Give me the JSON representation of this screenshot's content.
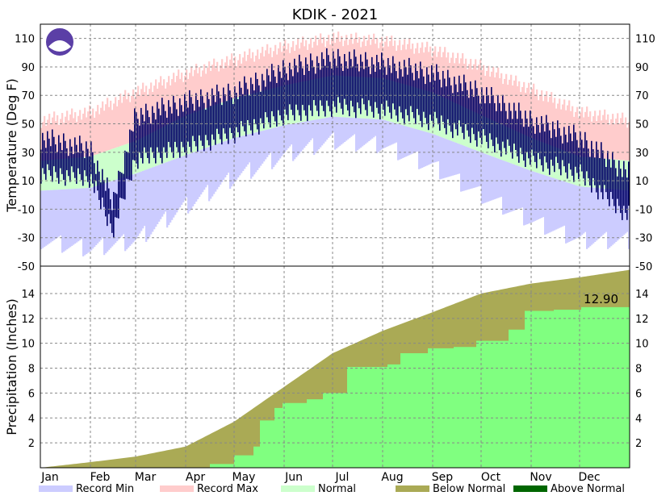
{
  "title": "KDIK - 2021",
  "chart_data": [
    {
      "type": "bar",
      "name": "temperature",
      "ylabel": "Temperature (Deg F)",
      "ylim": [
        -50,
        120
      ],
      "yticks": [
        110,
        90,
        70,
        50,
        30,
        10,
        -10,
        -30,
        -50
      ],
      "months": [
        "Jan",
        "Feb",
        "Mar",
        "Apr",
        "May",
        "Jun",
        "Jul",
        "Aug",
        "Sep",
        "Oct",
        "Nov",
        "Dec"
      ],
      "grid": true,
      "series": [
        {
          "name": "Record Min",
          "color": "#ccccff"
        },
        {
          "name": "Record Max",
          "color": "#ffcccc"
        },
        {
          "name": "Normal",
          "color": "#ccffcc"
        },
        {
          "name": "Observed",
          "color": "#000066"
        }
      ],
      "normal_high": {
        "day": [
          0,
          31,
          59,
          90,
          120,
          151,
          181,
          212,
          243,
          273,
          304,
          334,
          365
        ],
        "value": [
          24,
          27,
          38,
          56,
          68,
          77,
          84,
          82,
          72,
          56,
          40,
          27,
          24
        ]
      },
      "normal_low": {
        "day": [
          0,
          31,
          59,
          90,
          120,
          151,
          181,
          212,
          243,
          273,
          304,
          334,
          365
        ],
        "value": [
          3,
          5,
          15,
          28,
          40,
          49,
          55,
          53,
          43,
          30,
          17,
          6,
          3
        ]
      },
      "record_high": {
        "day": [
          0,
          31,
          59,
          90,
          120,
          151,
          181,
          212,
          243,
          273,
          304,
          334,
          365
        ],
        "value": [
          52,
          58,
          72,
          85,
          95,
          104,
          110,
          108,
          102,
          90,
          74,
          58,
          52
        ]
      },
      "record_low": {
        "day": [
          0,
          31,
          59,
          90,
          120,
          151,
          181,
          212,
          243,
          273,
          304,
          334,
          365
        ],
        "value": [
          -32,
          -38,
          -32,
          -8,
          12,
          28,
          38,
          35,
          20,
          0,
          -18,
          -32,
          -32
        ]
      },
      "observed_high": {
        "day": [
          0,
          31,
          45,
          59,
          90,
          120,
          151,
          181,
          212,
          243,
          273,
          304,
          334,
          365
        ],
        "value": [
          40,
          32,
          -5,
          55,
          65,
          72,
          88,
          96,
          92,
          85,
          72,
          52,
          40,
          15
        ]
      },
      "observed_low": {
        "day": [
          0,
          31,
          45,
          59,
          90,
          120,
          151,
          181,
          212,
          243,
          273,
          304,
          334,
          365
        ],
        "value": [
          15,
          12,
          -25,
          25,
          33,
          43,
          56,
          62,
          60,
          52,
          40,
          25,
          15,
          -15
        ]
      }
    },
    {
      "type": "area",
      "name": "precipitation",
      "ylabel": "Precipitation (Inches)",
      "ylim": [
        0,
        16.2
      ],
      "yticks": [
        14,
        12,
        10,
        8,
        6,
        4,
        2
      ],
      "grid": true,
      "annotation": "12.90",
      "normal_cumulative": {
        "day": [
          0,
          31,
          59,
          90,
          120,
          151,
          181,
          212,
          243,
          273,
          304,
          334,
          365
        ],
        "value": [
          0,
          0.45,
          0.9,
          1.7,
          3.7,
          6.5,
          9.2,
          11.0,
          12.5,
          14.0,
          14.8,
          15.3,
          15.9
        ]
      },
      "observed_cumulative": {
        "day": [
          0,
          90,
          105,
          120,
          132,
          136,
          145,
          150,
          165,
          175,
          190,
          215,
          223,
          240,
          256,
          270,
          275,
          290,
          300,
          318,
          335,
          365
        ],
        "value": [
          0,
          0,
          0.3,
          1.0,
          1.7,
          3.8,
          4.8,
          5.2,
          5.5,
          6.0,
          8.1,
          8.3,
          9.2,
          9.6,
          9.7,
          10.2,
          10.2,
          11.1,
          12.6,
          12.7,
          12.9,
          12.9
        ]
      }
    }
  ],
  "legend": [
    {
      "label": "Record Min",
      "color": "#ccccff"
    },
    {
      "label": "Record Max",
      "color": "#ffcccc"
    },
    {
      "label": "Normal",
      "color": "#ccffcc"
    },
    {
      "label": "Below Normal",
      "color": "#aaaa55"
    },
    {
      "label": "Above Normal",
      "color": "#006600"
    }
  ],
  "logo": {
    "text": "NOAA",
    "color": "#5b3fa6"
  }
}
